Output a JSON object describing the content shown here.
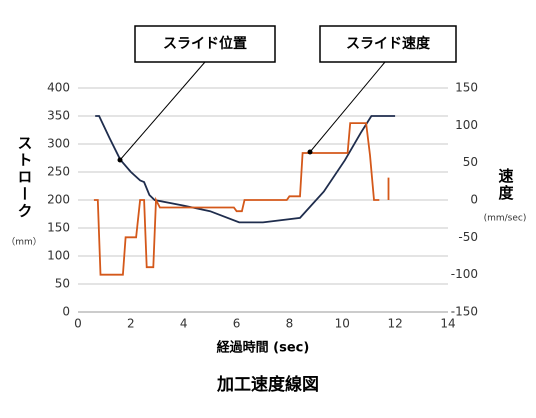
{
  "chart_data": {
    "type": "line",
    "title": "加工速度線図",
    "x_label": "経過時間 (sec)",
    "y_label": "ストローク",
    "y_unit": "（mm）",
    "y2_label": "速度",
    "y2_unit": "(mm/sec)",
    "annotations": [
      "スライド位置",
      "スライド速度"
    ],
    "xlim": [
      0,
      14
    ],
    "xticks": [
      0,
      2,
      4,
      6,
      8,
      10,
      12,
      14
    ],
    "ylim": [
      0,
      400
    ],
    "yticks": [
      0,
      50,
      100,
      150,
      200,
      250,
      300,
      350,
      400
    ],
    "y2lim": [
      -150,
      150
    ],
    "y2ticks": [
      -150,
      -100,
      -50,
      0,
      50,
      100,
      150
    ],
    "grid": true,
    "series": [
      {
        "color": "#1f2d4d",
        "x": [
          0.65,
          0.8,
          1.2,
          1.6,
          2.0,
          2.35,
          2.5,
          2.7,
          2.9,
          4.0,
          5.0,
          6.1,
          7.0,
          8.4,
          9.3,
          10.1,
          10.7,
          11.1,
          12.0
        ],
        "values": [
          350,
          350,
          310,
          272,
          250,
          235,
          232,
          209,
          200,
          190,
          180,
          160,
          160,
          168,
          215,
          271,
          320,
          350,
          350
        ]
      },
      {
        "color": "#d4581a",
        "axis": "y2",
        "x": [
          0.6,
          0.75,
          0.85,
          1.7,
          1.8,
          2.2,
          2.35,
          2.5,
          2.6,
          2.85,
          2.95,
          3.1,
          5.9,
          6.0,
          6.2,
          6.3,
          7.9,
          8.0,
          8.4,
          8.5,
          10.2,
          10.3,
          10.9,
          11.05,
          11.2,
          11.4,
          null,
          11.75,
          11.75
        ],
        "values": [
          0,
          0,
          -100,
          -100,
          -50,
          -50,
          0,
          0,
          -90,
          -90,
          0,
          -10,
          -10,
          -15,
          -15,
          0,
          0,
          5,
          5,
          63,
          63,
          103,
          103,
          60,
          0,
          0,
          null,
          0,
          30
        ]
      }
    ]
  }
}
